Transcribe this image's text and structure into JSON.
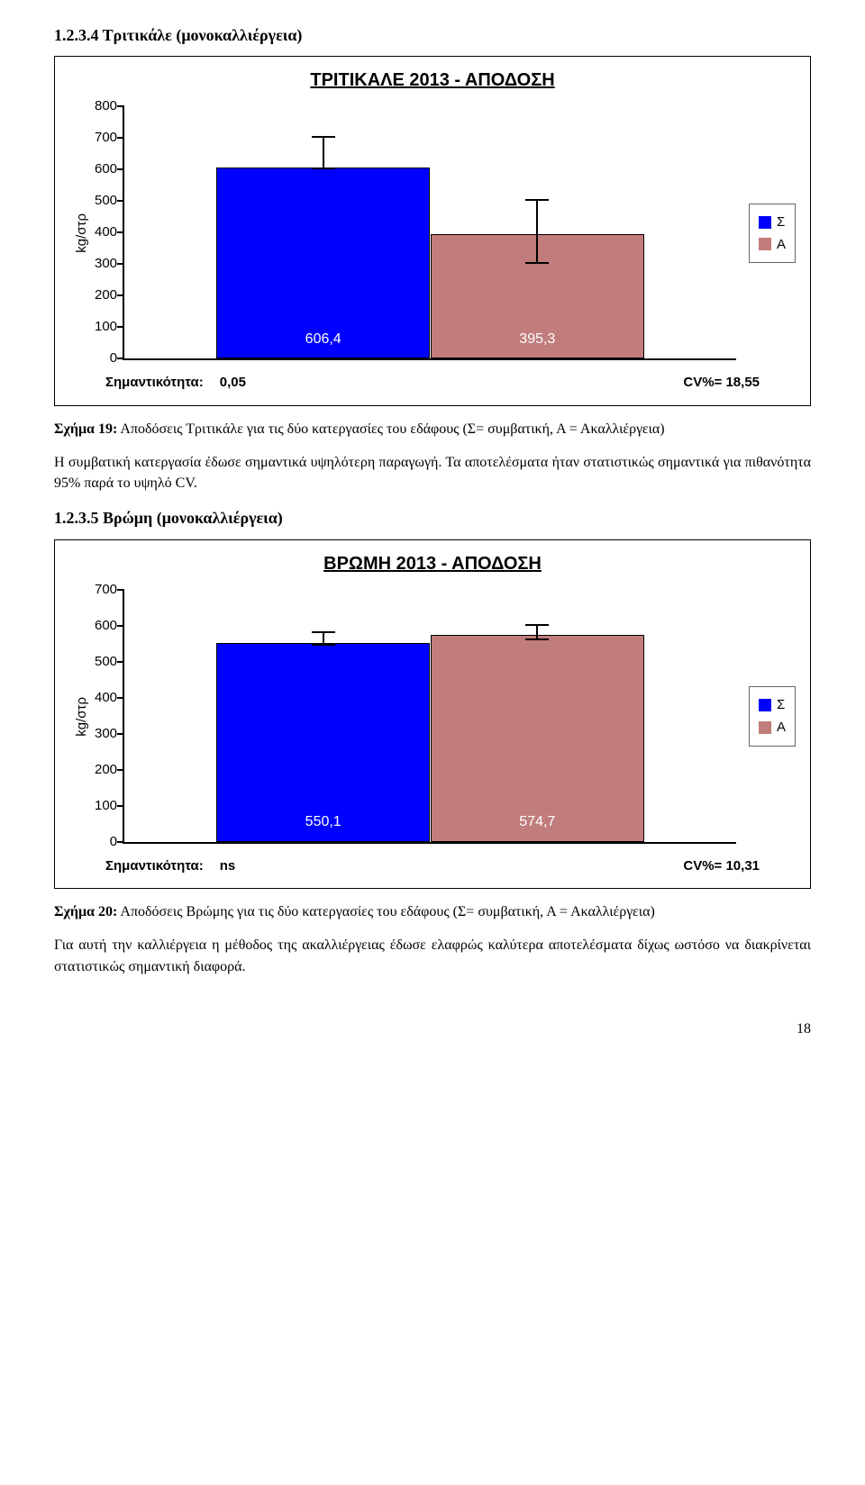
{
  "heading1": "1.2.3.4 Τριτικάλε (μονοκαλλιέργεια)",
  "chart1": {
    "title": "ΤΡΙΤΙΚΑΛΕ 2013 - ΑΠΟΔΟΣΗ",
    "ylabel": "kg/στρ",
    "yticks": [
      0,
      100,
      200,
      300,
      400,
      500,
      600,
      700,
      800
    ],
    "ymax": 800,
    "bars": [
      {
        "value": 606.4,
        "label": "606,4",
        "color": "#0000ff",
        "err_low": 600,
        "err_high": 700
      },
      {
        "value": 395.3,
        "label": "395,3",
        "color": "#c17d7b",
        "err_low": 300,
        "err_high": 500
      }
    ],
    "legend": [
      {
        "label": "Σ",
        "color": "#0000ff"
      },
      {
        "label": "Α",
        "color": "#c17d7b"
      }
    ],
    "sig_label": "Σημαντικότητα:",
    "sig_value": "0,05",
    "cv_label": "CV%= 18,55"
  },
  "caption1": {
    "lead": "Σχήμα 19:",
    "rest": " Αποδόσεις Τριτικάλε για τις δύο κατεργασίες του εδάφους (Σ= συμβατική, Α = Ακαλλιέργεια)"
  },
  "para1": "Η συμβατική κατεργασία έδωσε σημαντικά υψηλότερη παραγωγή. Τα αποτελέσματα ήταν στατιστικώς σημαντικά για πιθανότητα 95% παρά το υψηλό CV.",
  "heading2": "1.2.3.5 Βρώμη (μονοκαλλιέργεια)",
  "chart2": {
    "title": "ΒΡΩΜΗ 2013 - ΑΠΟΔΟΣΗ",
    "ylabel": "kg/στρ",
    "yticks": [
      0,
      100,
      200,
      300,
      400,
      500,
      600,
      700
    ],
    "ymax": 700,
    "bars": [
      {
        "value": 550.1,
        "label": "550,1",
        "color": "#0000ff",
        "err_low": 545,
        "err_high": 580
      },
      {
        "value": 574.7,
        "label": "574,7",
        "color": "#c17d7b",
        "err_low": 560,
        "err_high": 600
      }
    ],
    "legend": [
      {
        "label": "Σ",
        "color": "#0000ff"
      },
      {
        "label": "Α",
        "color": "#c17d7b"
      }
    ],
    "sig_label": "Σημαντικότητα:",
    "sig_value": "ns",
    "cv_label": "CV%= 10,31"
  },
  "caption2": {
    "lead": "Σχήμα 20:",
    "rest": " Αποδόσεις Βρώμης για τις δύο κατεργασίες του εδάφους (Σ= συμβατική, Α = Ακαλλιέργεια)"
  },
  "para2": "Για αυτή την καλλιέργεια η μέθοδος της ακαλλιέργειας έδωσε ελαφρώς καλύτερα αποτελέσματα δίχως ωστόσο να διακρίνεται στατιστικώς σημαντική διαφορά.",
  "page_number": "18"
}
